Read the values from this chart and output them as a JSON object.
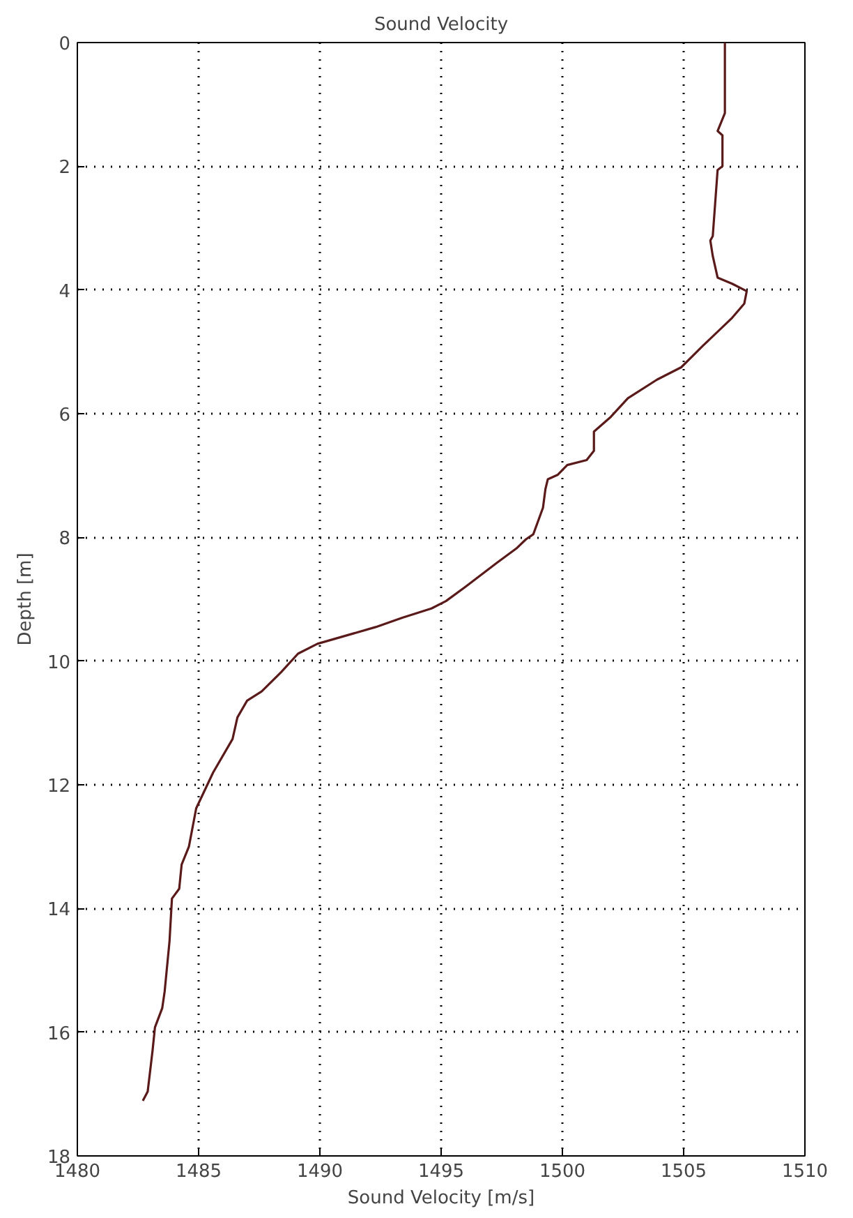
{
  "chart_data": {
    "type": "line",
    "title": "Sound Velocity",
    "xlabel": "Sound Velocity [m/s]",
    "ylabel": "Depth [m]",
    "xlim": [
      1480,
      1510
    ],
    "xticks": [
      1480,
      1485,
      1490,
      1495,
      1500,
      1505,
      1510
    ],
    "ylim": [
      18,
      0
    ],
    "yticks": [
      0,
      2,
      4,
      6,
      8,
      10,
      12,
      14,
      16,
      18
    ],
    "grid": true,
    "line_style": "solid",
    "marker": "none",
    "series": [
      {
        "color": "#5a1a1a",
        "x": [
          1506.7,
          1506.7,
          1506.4,
          1506.6,
          1506.6,
          1506.4,
          1506.2,
          1506.1,
          1506.2,
          1506.4,
          1507.0,
          1507.6,
          1507.5,
          1507.0,
          1505.8,
          1504.9,
          1503.9,
          1502.7,
          1502.0,
          1501.3,
          1501.3,
          1501.0,
          1500.2,
          1499.8,
          1499.4,
          1499.3,
          1499.2,
          1498.8,
          1498.5,
          1498.1,
          1497.3,
          1496.0,
          1495.2,
          1494.6,
          1493.4,
          1492.3,
          1489.9,
          1489.1,
          1488.4,
          1487.6,
          1487.0,
          1486.6,
          1486.4,
          1485.6,
          1484.9,
          1484.6,
          1484.3,
          1484.2,
          1483.9,
          1483.8,
          1483.6,
          1483.5,
          1483.2,
          1483.1,
          1482.9,
          1482.7
        ],
        "values": [
          0,
          1.14,
          1.43,
          1.5,
          2.0,
          2.06,
          3.13,
          3.2,
          3.45,
          3.8,
          3.9,
          4.02,
          4.22,
          4.45,
          4.9,
          5.25,
          5.45,
          5.75,
          6.05,
          6.29,
          6.6,
          6.75,
          6.83,
          6.99,
          7.06,
          7.22,
          7.52,
          7.95,
          8.03,
          8.18,
          8.41,
          8.8,
          9.03,
          9.15,
          9.3,
          9.45,
          9.72,
          9.88,
          10.18,
          10.49,
          10.64,
          10.91,
          11.26,
          11.8,
          12.38,
          13.0,
          13.29,
          13.68,
          13.84,
          14.53,
          15.34,
          15.61,
          15.92,
          16.3,
          16.96,
          17.11
        ]
      }
    ]
  }
}
